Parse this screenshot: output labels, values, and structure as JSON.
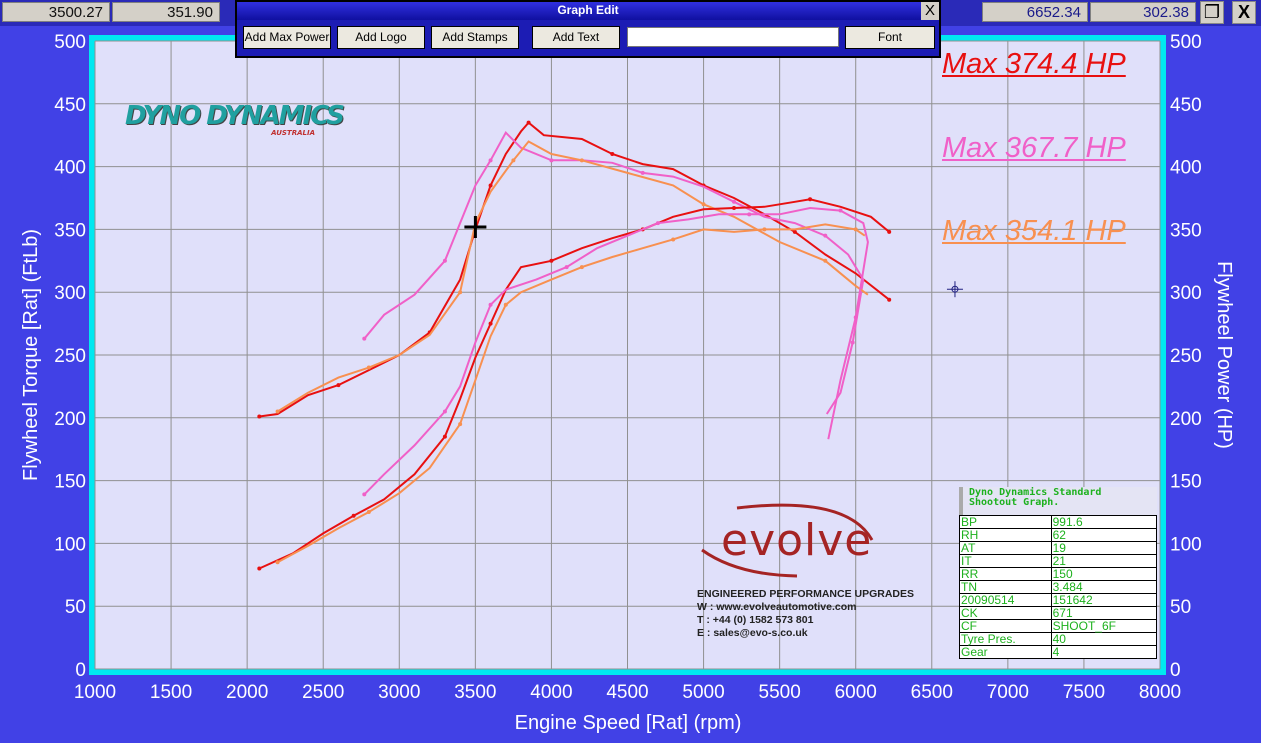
{
  "readouts": {
    "left_rpm": "3500.27",
    "left_value": "351.90",
    "right_rpm": "6652.34",
    "right_value": "302.38"
  },
  "window_buttons": {
    "restore_icon": "restore-icon",
    "close_label": "X"
  },
  "dialog": {
    "title": "Graph Edit",
    "close_label": "X",
    "buttons": [
      "Add Max Power",
      "Add Logo",
      "Add Stamps",
      "Add Text",
      "Font"
    ],
    "text_value": ""
  },
  "chart_data": {
    "type": "line",
    "xlabel": "Engine Speed [Rat] (rpm)",
    "ylabel": "Flywheel Torque [Rat] (FtLb)",
    "y2label": "Flywheel Power (HP)",
    "xlim": [
      1000,
      8000
    ],
    "ylim": [
      0,
      500
    ],
    "y2lim": [
      0,
      500
    ],
    "xticks": [
      1000,
      1500,
      2000,
      2500,
      3000,
      3500,
      4000,
      4500,
      5000,
      5500,
      6000,
      6500,
      7000,
      7500,
      8000
    ],
    "yticks": [
      0,
      50,
      100,
      150,
      200,
      250,
      300,
      350,
      400,
      450,
      500
    ],
    "grid": true,
    "colors": {
      "red": "#e81010",
      "pink": "#f060c8",
      "orange": "#f89050",
      "background": "#e0e0fa",
      "border": "#00e8f0",
      "outer": "#4141e6"
    },
    "series": [
      {
        "color": "#e81010",
        "kind": "torque",
        "points": [
          [
            2080,
            201
          ],
          [
            2200,
            203
          ],
          [
            2400,
            218
          ],
          [
            2600,
            226
          ],
          [
            2800,
            238
          ],
          [
            3000,
            250
          ],
          [
            3200,
            268
          ],
          [
            3400,
            310
          ],
          [
            3500,
            350
          ],
          [
            3600,
            385
          ],
          [
            3700,
            410
          ],
          [
            3800,
            428
          ],
          [
            3850,
            435
          ],
          [
            3950,
            425
          ],
          [
            4200,
            422
          ],
          [
            4400,
            410
          ],
          [
            4600,
            402
          ],
          [
            4800,
            398
          ],
          [
            5000,
            385
          ],
          [
            5200,
            375
          ],
          [
            5400,
            362
          ],
          [
            5600,
            348
          ],
          [
            5800,
            330
          ],
          [
            6000,
            315
          ],
          [
            6220,
            294
          ]
        ]
      },
      {
        "color": "#f060c8",
        "kind": "torque",
        "points": [
          [
            2770,
            263
          ],
          [
            2900,
            282
          ],
          [
            3100,
            298
          ],
          [
            3300,
            325
          ],
          [
            3400,
            355
          ],
          [
            3500,
            385
          ],
          [
            3600,
            405
          ],
          [
            3700,
            427
          ],
          [
            3800,
            415
          ],
          [
            4000,
            405
          ],
          [
            4200,
            405
          ],
          [
            4400,
            403
          ],
          [
            4600,
            395
          ],
          [
            4800,
            392
          ],
          [
            5000,
            384
          ],
          [
            5200,
            372
          ],
          [
            5400,
            360
          ],
          [
            5600,
            355
          ],
          [
            5800,
            345
          ],
          [
            5950,
            330
          ],
          [
            6050,
            310
          ],
          [
            5980,
            260
          ],
          [
            5900,
            220
          ],
          [
            5810,
            203
          ]
        ]
      },
      {
        "color": "#f89050",
        "kind": "torque",
        "points": [
          [
            2200,
            205
          ],
          [
            2400,
            220
          ],
          [
            2600,
            232
          ],
          [
            2800,
            240
          ],
          [
            3000,
            250
          ],
          [
            3200,
            266
          ],
          [
            3400,
            300
          ],
          [
            3500,
            355
          ],
          [
            3600,
            380
          ],
          [
            3750,
            405
          ],
          [
            3850,
            420
          ],
          [
            4000,
            410
          ],
          [
            4200,
            405
          ],
          [
            4500,
            395
          ],
          [
            4800,
            385
          ],
          [
            5000,
            370
          ],
          [
            5200,
            360
          ],
          [
            5500,
            340
          ],
          [
            5800,
            325
          ],
          [
            6000,
            305
          ],
          [
            6080,
            298
          ]
        ]
      },
      {
        "color": "#e81010",
        "kind": "power",
        "points": [
          [
            2080,
            80
          ],
          [
            2300,
            92
          ],
          [
            2500,
            108
          ],
          [
            2700,
            122
          ],
          [
            2900,
            135
          ],
          [
            3100,
            155
          ],
          [
            3300,
            185
          ],
          [
            3400,
            215
          ],
          [
            3500,
            248
          ],
          [
            3600,
            275
          ],
          [
            3700,
            302
          ],
          [
            3800,
            320
          ],
          [
            4000,
            325
          ],
          [
            4200,
            335
          ],
          [
            4400,
            343
          ],
          [
            4600,
            350
          ],
          [
            4800,
            360
          ],
          [
            5000,
            366
          ],
          [
            5200,
            367
          ],
          [
            5400,
            368
          ],
          [
            5600,
            372
          ],
          [
            5700,
            374
          ],
          [
            5900,
            368
          ],
          [
            6100,
            360
          ],
          [
            6220,
            348
          ]
        ]
      },
      {
        "color": "#f060c8",
        "kind": "power",
        "points": [
          [
            2770,
            139
          ],
          [
            2900,
            155
          ],
          [
            3100,
            178
          ],
          [
            3300,
            205
          ],
          [
            3400,
            225
          ],
          [
            3500,
            260
          ],
          [
            3600,
            290
          ],
          [
            3700,
            302
          ],
          [
            3900,
            310
          ],
          [
            4100,
            320
          ],
          [
            4300,
            335
          ],
          [
            4500,
            345
          ],
          [
            4700,
            355
          ],
          [
            4900,
            358
          ],
          [
            5100,
            362
          ],
          [
            5300,
            362
          ],
          [
            5500,
            362
          ],
          [
            5700,
            367
          ],
          [
            5900,
            365
          ],
          [
            6050,
            355
          ],
          [
            6080,
            340
          ],
          [
            6000,
            280
          ],
          [
            5900,
            230
          ],
          [
            5820,
            183
          ]
        ]
      },
      {
        "color": "#f89050",
        "kind": "power",
        "points": [
          [
            2200,
            85
          ],
          [
            2400,
            98
          ],
          [
            2600,
            112
          ],
          [
            2800,
            125
          ],
          [
            3000,
            140
          ],
          [
            3200,
            160
          ],
          [
            3400,
            195
          ],
          [
            3500,
            230
          ],
          [
            3600,
            265
          ],
          [
            3700,
            290
          ],
          [
            3800,
            300
          ],
          [
            4000,
            310
          ],
          [
            4200,
            320
          ],
          [
            4400,
            328
          ],
          [
            4600,
            335
          ],
          [
            4800,
            342
          ],
          [
            5000,
            350
          ],
          [
            5200,
            348
          ],
          [
            5400,
            350
          ],
          [
            5600,
            350
          ],
          [
            5800,
            354
          ],
          [
            6000,
            350
          ],
          [
            6060,
            345
          ]
        ]
      }
    ],
    "cursors": [
      {
        "rpm": 3500.27,
        "value": 351.9,
        "color": "#000000"
      },
      {
        "rpm": 6652.34,
        "value": 302.38,
        "color": "#202080"
      }
    ],
    "max_labels": [
      {
        "text": "Max 374.4 HP",
        "color": "#e81010"
      },
      {
        "text": "Max 367.7 HP",
        "color": "#f060c8"
      },
      {
        "text": "Max 354.1 HP",
        "color": "#f89050"
      }
    ]
  },
  "logos": {
    "dyno": "DYNO DYNAMICS",
    "dyno_sub": "AUSTRALIA",
    "evolve": "evolve"
  },
  "evolve_text": {
    "tagline": "ENGINEERED PERFORMANCE UPGRADES",
    "web": "W : www.evolveautomotive.com",
    "tel": "T : +44 (0) 1582 573 801",
    "email": "E : sales@evo-s.co.uk"
  },
  "info": {
    "title": "Dyno Dynamics Standard Shootout Graph.",
    "rows": [
      [
        "BP",
        "991.6"
      ],
      [
        "RH",
        "62"
      ],
      [
        "AT",
        "19"
      ],
      [
        "IT",
        "21"
      ],
      [
        "RR",
        "150"
      ],
      [
        "TN",
        "3.484"
      ],
      [
        "20090514",
        "151642"
      ],
      [
        "CK",
        "671"
      ],
      [
        "CF",
        "SHOOT_6F"
      ],
      [
        "Tyre Pres.",
        "40"
      ],
      [
        "Gear",
        "4"
      ]
    ]
  }
}
